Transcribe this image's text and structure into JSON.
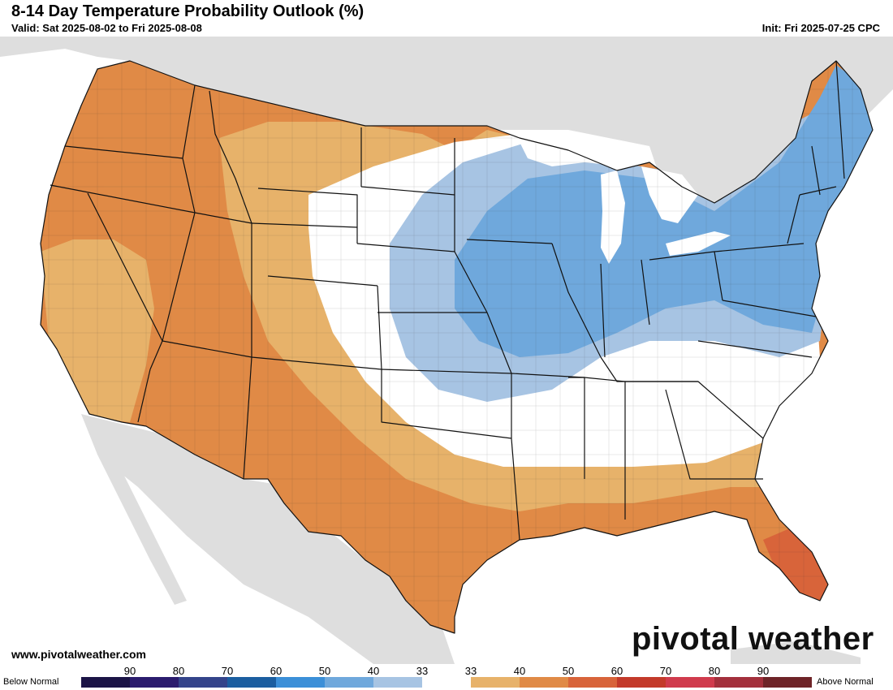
{
  "header": {
    "title": "8-14 Day Temperature Probability Outlook (%)",
    "valid": "Valid: Sat 2025-08-02 to Fri 2025-08-08",
    "init": "Init: Fri 2025-07-25 CPC"
  },
  "footer": {
    "website": "www.pivotalweather.com",
    "logo": "pivotal weather"
  },
  "legend": {
    "below_label": "Below Normal",
    "above_label": "Above Normal",
    "tick_labels": [
      "90",
      "80",
      "70",
      "60",
      "50",
      "40",
      "33",
      "33",
      "40",
      "50",
      "60",
      "70",
      "80",
      "90"
    ],
    "colors": [
      "#1b1446",
      "#2b1c6e",
      "#34448a",
      "#1b5ea0",
      "#3b8fd8",
      "#6fa8dc",
      "#a7c4e3",
      "#ffffff",
      "#e7b26a",
      "#e08a46",
      "#d8643a",
      "#c33a2a",
      "#d03b4d",
      "#a3303c",
      "#6e2428"
    ]
  },
  "map": {
    "colors": {
      "ocean": "#ffffff",
      "land_outside": "#dedede",
      "normal": "#ffffff",
      "above_40": "#e7b26a",
      "above_50": "#e08a46",
      "above_60": "#d8643a",
      "below_33": "#a7c4e3",
      "below_40": "#6fa8dc"
    }
  }
}
